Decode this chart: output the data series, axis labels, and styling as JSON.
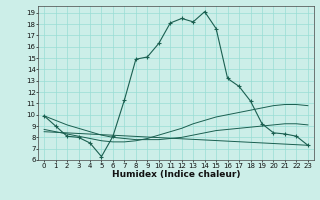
{
  "title": "",
  "xlabel": "Humidex (Indice chaleur)",
  "background_color": "#cceee8",
  "grid_color": "#99ddd5",
  "line_color": "#1a5f50",
  "xlim": [
    -0.5,
    23.5
  ],
  "ylim": [
    6,
    19.6
  ],
  "xticks": [
    0,
    1,
    2,
    3,
    4,
    5,
    6,
    7,
    8,
    9,
    10,
    11,
    12,
    13,
    14,
    15,
    16,
    17,
    18,
    19,
    20,
    21,
    22,
    23
  ],
  "yticks": [
    6,
    7,
    8,
    9,
    10,
    11,
    12,
    13,
    14,
    15,
    16,
    17,
    18,
    19
  ],
  "series": [
    {
      "x": [
        0,
        1,
        2,
        3,
        4,
        5,
        6,
        7,
        8,
        9,
        10,
        11,
        12,
        13,
        14,
        15,
        16,
        17,
        18,
        19,
        20,
        21,
        22,
        23
      ],
      "y": [
        9.9,
        9.0,
        8.1,
        8.0,
        7.5,
        6.3,
        8.1,
        11.3,
        14.9,
        15.1,
        16.3,
        18.1,
        18.5,
        18.2,
        19.1,
        17.6,
        13.2,
        12.5,
        11.2,
        9.2,
        8.4,
        8.3,
        8.1,
        7.3
      ],
      "has_markers": true
    },
    {
      "x": [
        0,
        1,
        2,
        3,
        4,
        5,
        6,
        7,
        8,
        9,
        10,
        11,
        12,
        13,
        14,
        15,
        16,
        17,
        18,
        19,
        20,
        21,
        22,
        23
      ],
      "y": [
        9.9,
        9.5,
        9.1,
        8.8,
        8.5,
        8.2,
        8.0,
        7.9,
        7.8,
        7.8,
        7.8,
        7.9,
        8.0,
        8.2,
        8.4,
        8.6,
        8.7,
        8.8,
        8.9,
        9.0,
        9.1,
        9.2,
        9.2,
        9.1
      ],
      "has_markers": false
    },
    {
      "x": [
        0,
        1,
        2,
        3,
        4,
        5,
        6,
        7,
        8,
        9,
        10,
        11,
        12,
        13,
        14,
        15,
        16,
        17,
        18,
        19,
        20,
        21,
        22,
        23
      ],
      "y": [
        8.7,
        8.5,
        8.3,
        8.1,
        7.9,
        7.7,
        7.6,
        7.6,
        7.7,
        7.9,
        8.2,
        8.5,
        8.8,
        9.2,
        9.5,
        9.8,
        10.0,
        10.2,
        10.4,
        10.6,
        10.8,
        10.9,
        10.9,
        10.8
      ],
      "has_markers": false
    },
    {
      "x": [
        0,
        23
      ],
      "y": [
        8.5,
        7.3
      ],
      "has_markers": false
    }
  ]
}
